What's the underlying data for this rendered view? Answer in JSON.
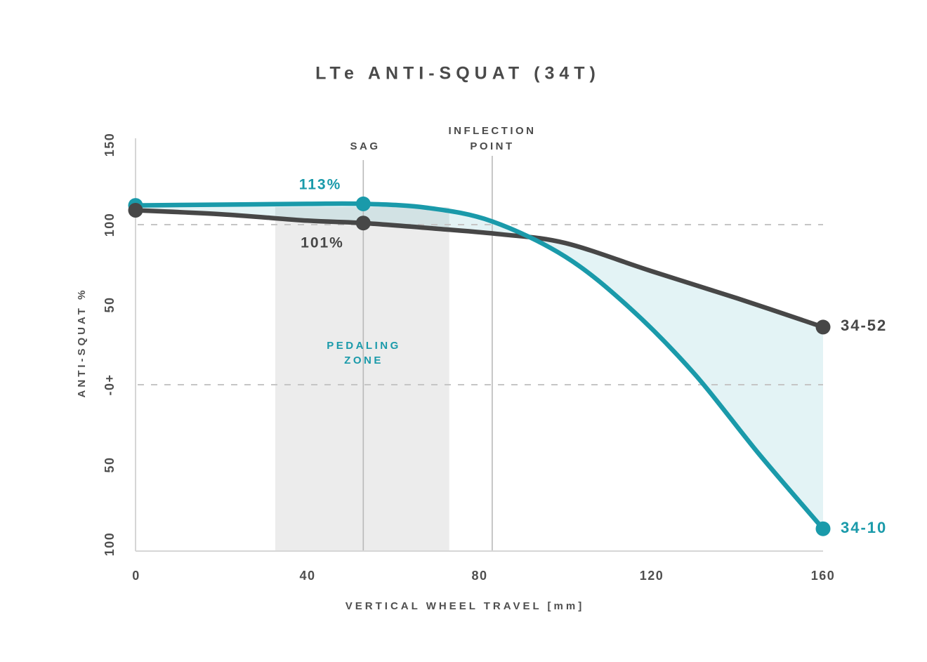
{
  "chart_data": {
    "type": "line",
    "title": "LTe ANTI-SQUAT (34T)",
    "xlabel": "VERTICAL WHEEL TRAVEL [mm]",
    "ylabel": "ANTI-SQUAT %",
    "x_ticks": [
      "0",
      "40",
      "80",
      "120",
      "160"
    ],
    "x_tick_values": [
      0,
      40,
      80,
      120,
      160
    ],
    "y_ticks": [
      "150",
      "100",
      "50",
      "-0+",
      "50",
      "100"
    ],
    "y_tick_values": [
      150,
      100,
      50,
      0,
      -50,
      -100
    ],
    "xlim": [
      0,
      160
    ],
    "ylim": [
      -104,
      154
    ],
    "grid": "dashed horizontal at 100% and 0%",
    "gridline_values": [
      100,
      0
    ],
    "legend_position": "end-of-line labels",
    "series": [
      {
        "name": "34-10",
        "color": "#1A9AAA",
        "points": [
          [
            0,
            112
          ],
          [
            20,
            112.5
          ],
          [
            40,
            113
          ],
          [
            53,
            113
          ],
          [
            68,
            110.5
          ],
          [
            83,
            102
          ],
          [
            100,
            80
          ],
          [
            115,
            48
          ],
          [
            130,
            7
          ],
          [
            145,
            -43
          ],
          [
            160,
            -90
          ]
        ],
        "dots": [
          [
            0,
            112
          ],
          [
            53,
            113
          ],
          [
            160,
            -90
          ]
        ],
        "sag_value_label": "113%",
        "end_label": "34-10"
      },
      {
        "name": "34-52",
        "color": "#474747",
        "points": [
          [
            0,
            109
          ],
          [
            20,
            106.5
          ],
          [
            40,
            102.5
          ],
          [
            53,
            101
          ],
          [
            70,
            97.5
          ],
          [
            85,
            94
          ],
          [
            100,
            88.5
          ],
          [
            120,
            71
          ],
          [
            140,
            54
          ],
          [
            160,
            36
          ]
        ],
        "dots": [
          [
            0,
            109
          ],
          [
            53,
            101
          ],
          [
            160,
            36
          ]
        ],
        "sag_value_label": "101%",
        "end_label": "34-52"
      }
    ],
    "markers": {
      "sag": {
        "label": "SAG",
        "x_mm": 53
      },
      "inflection": {
        "lines": [
          "INFLECTION",
          "POINT"
        ],
        "x_mm": 83
      }
    },
    "pedaling_zone": {
      "lines": [
        "PEDALING",
        "ZONE"
      ],
      "from_mm": 32.5,
      "to_mm": 73,
      "top_pct": 111
    },
    "colors": {
      "teal": "#1A9AAA",
      "dark": "#474747",
      "zone_fill": "#ECECEC",
      "between_fill": "rgba(23,153,170,0.12)",
      "dash_line": "#c5c5c5",
      "axis_line": "#d6d6d6",
      "marker_line": "#b9b9b9"
    }
  }
}
